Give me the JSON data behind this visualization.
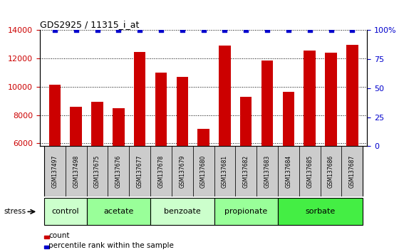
{
  "title": "GDS2925 / 11315_i_at",
  "samples": [
    "GSM137497",
    "GSM137498",
    "GSM137675",
    "GSM137676",
    "GSM137677",
    "GSM137678",
    "GSM137679",
    "GSM137680",
    "GSM137681",
    "GSM137682",
    "GSM137683",
    "GSM137684",
    "GSM137685",
    "GSM137686",
    "GSM137687"
  ],
  "counts": [
    10150,
    8600,
    8950,
    8500,
    12450,
    11000,
    10700,
    7000,
    12900,
    9300,
    11850,
    9650,
    12550,
    12400,
    12950
  ],
  "percentiles": [
    100,
    100,
    100,
    100,
    100,
    100,
    100,
    100,
    100,
    100,
    100,
    100,
    100,
    100,
    100
  ],
  "ylim_left": [
    5800,
    14000
  ],
  "ylim_right": [
    0,
    100
  ],
  "yticks_left": [
    6000,
    8000,
    10000,
    12000,
    14000
  ],
  "yticks_right": [
    0,
    25,
    50,
    75,
    100
  ],
  "bar_color": "#cc0000",
  "percentile_color": "#0000cc",
  "groups": [
    {
      "label": "control",
      "start": 0,
      "end": 1,
      "color": "#ccffcc"
    },
    {
      "label": "acetate",
      "start": 2,
      "end": 4,
      "color": "#99ff99"
    },
    {
      "label": "benzoate",
      "start": 5,
      "end": 7,
      "color": "#ccffcc"
    },
    {
      "label": "propionate",
      "start": 8,
      "end": 10,
      "color": "#99ff99"
    },
    {
      "label": "sorbate",
      "start": 11,
      "end": 14,
      "color": "#44ee44"
    }
  ],
  "stress_label": "stress",
  "legend_count_label": "count",
  "legend_percentile_label": "percentile rank within the sample",
  "bar_width": 0.55,
  "xlim": [
    -0.7,
    14.7
  ],
  "tick_label_color_left": "#cc0000",
  "tick_label_color_right": "#0000cc",
  "sample_box_color": "#cccccc",
  "fig_bg": "#ffffff"
}
